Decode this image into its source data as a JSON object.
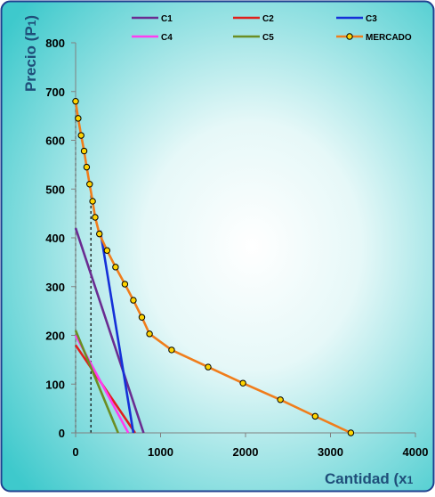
{
  "chart_data": {
    "type": "line",
    "xlabel": "Cantidad (x",
    "xlabel_subscript": "1",
    "ylabel": "Precio (P",
    "ylabel_subscript": "1",
    "ylabel_suffix": ")",
    "xlim": [
      0,
      4000
    ],
    "ylim": [
      0,
      800
    ],
    "x_ticks": [
      0,
      1000,
      2000,
      3000,
      4000
    ],
    "y_ticks": [
      0,
      100,
      200,
      300,
      400,
      500,
      600,
      700,
      800
    ],
    "x_tick_labels": [
      "0",
      "1000",
      "2000",
      "3000",
      "4000"
    ],
    "y_tick_labels": [
      "0",
      "100",
      "200",
      "300",
      "400",
      "500",
      "600",
      "700",
      "800"
    ],
    "legend_position": "top",
    "grid": false,
    "colors": {
      "background_center": "#ffffff",
      "background_edge": "#3ec9cc",
      "border": "#1f3f8f",
      "axis_title": "#1f4e79"
    },
    "series": [
      {
        "name": "C1",
        "color": "#6a2c91",
        "x": [
          0,
          800
        ],
        "y": [
          420,
          0
        ],
        "markers": false
      },
      {
        "name": "C2",
        "color": "#e0201b",
        "x": [
          0,
          700
        ],
        "y": [
          180,
          0
        ],
        "markers": false
      },
      {
        "name": "C3",
        "color": "#1530d8",
        "x": [
          290,
          680
        ],
        "y": [
          415,
          0
        ],
        "markers": false
      },
      {
        "name": "C4",
        "color": "#ff3cf0",
        "x": [
          0,
          620
        ],
        "y": [
          200,
          0
        ],
        "markers": false
      },
      {
        "name": "C5",
        "color": "#6b8e23",
        "x": [
          0,
          500
        ],
        "y": [
          210,
          0
        ],
        "markers": false
      },
      {
        "name": "MERCADO",
        "color": "#f07d1b",
        "marker_color": "#ffd400",
        "x": [
          0,
          30,
          65,
          100,
          130,
          165,
          200,
          230,
          280,
          370,
          470,
          580,
          680,
          780,
          870,
          1130,
          1560,
          1970,
          2410,
          2820,
          3240
        ],
        "y": [
          680,
          645,
          610,
          578,
          545,
          510,
          475,
          442,
          408,
          374,
          340,
          305,
          272,
          237,
          203,
          170,
          135,
          102,
          68,
          34,
          0
        ],
        "markers": true
      }
    ],
    "reference_lines": [
      {
        "x": [
          0,
          0
        ],
        "y": [
          0,
          680
        ]
      },
      {
        "x": [
          180,
          180
        ],
        "y": [
          0,
          500
        ]
      }
    ]
  }
}
